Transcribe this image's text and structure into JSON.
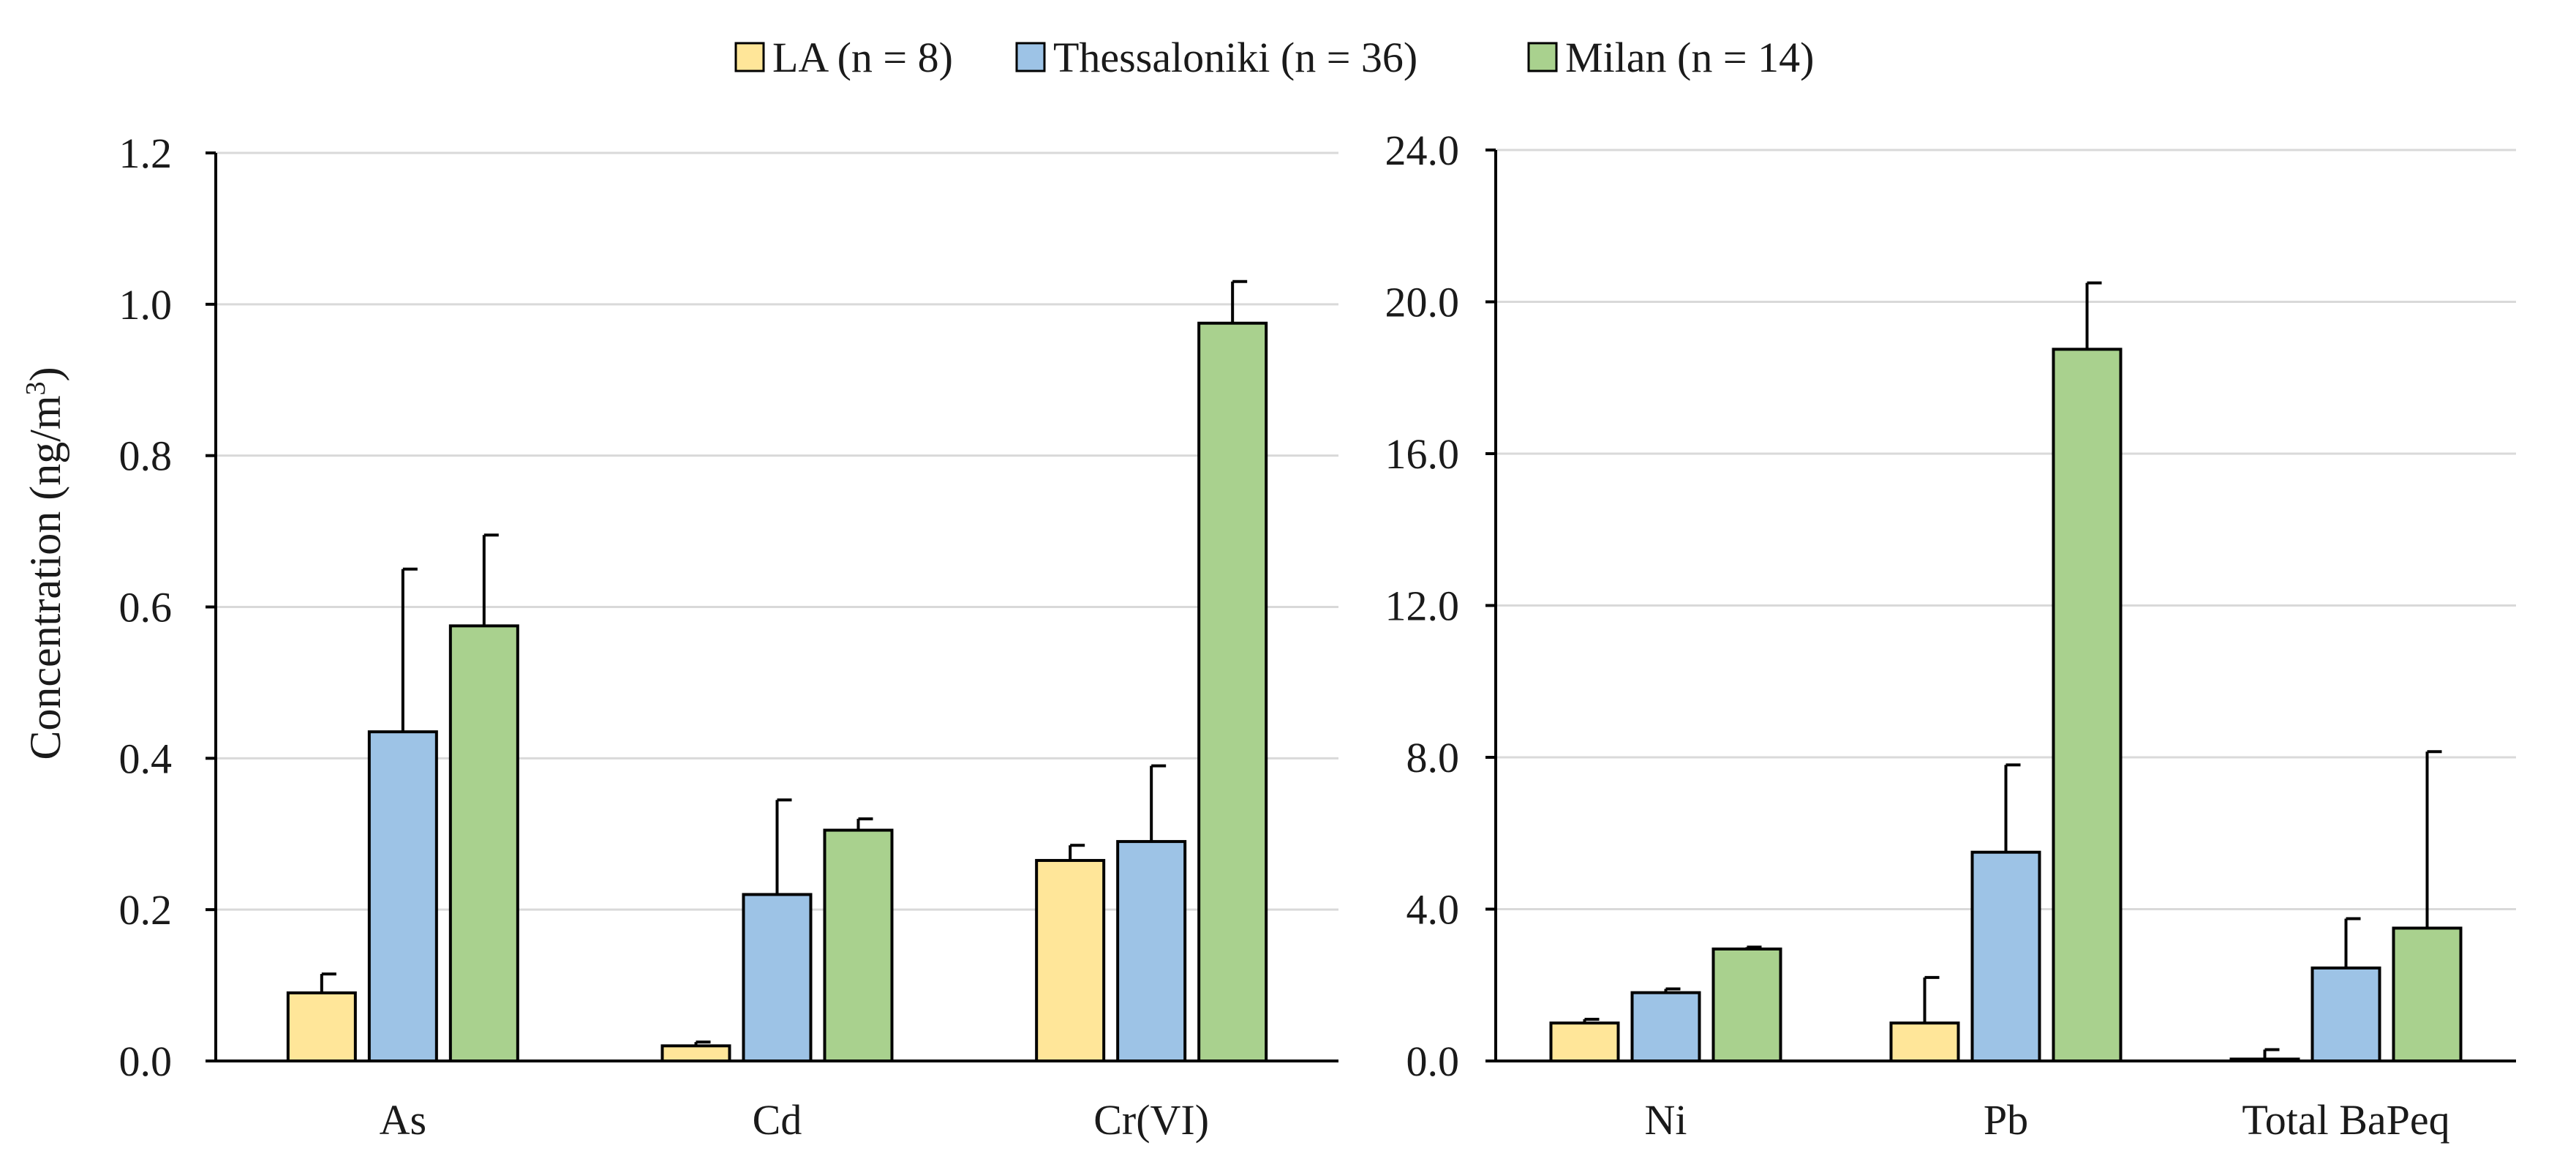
{
  "legend": [
    {
      "name": "LA (n = 8)",
      "color": "#ffe699"
    },
    {
      "name": "Thessaloniki (n = 36)",
      "color": "#9dc3e6"
    },
    {
      "name": "Milan (n = 14)",
      "color": "#a9d18e"
    }
  ],
  "ylabel": {
    "main": "Concentration (ng/m",
    "sup": "3",
    "close": ")"
  },
  "chart_data": [
    {
      "type": "bar",
      "title": "",
      "xlabel": "",
      "ylabel": "Concentration (ng/m3)",
      "ylim": [
        0,
        1.2
      ],
      "yticks": [
        "0.0",
        "0.2",
        "0.4",
        "0.6",
        "0.8",
        "1.0",
        "1.2"
      ],
      "grid": true,
      "categories": [
        "As",
        "Cd",
        "Cr(VI)"
      ],
      "series": [
        {
          "name": "LA (n = 8)",
          "values": [
            0.09,
            0.02,
            0.265
          ],
          "errors": [
            0.025,
            0.005,
            0.02
          ]
        },
        {
          "name": "Thessaloniki (n = 36)",
          "values": [
            0.435,
            0.22,
            0.29
          ],
          "errors": [
            0.215,
            0.125,
            0.1
          ]
        },
        {
          "name": "Milan (n = 14)",
          "values": [
            0.575,
            0.305,
            0.975
          ],
          "errors": [
            0.12,
            0.015,
            0.055
          ]
        }
      ]
    },
    {
      "type": "bar",
      "title": "",
      "xlabel": "",
      "ylabel": "",
      "ylim": [
        0,
        24
      ],
      "yticks": [
        "0.0",
        "4.0",
        "8.0",
        "12.0",
        "16.0",
        "20.0",
        "24.0"
      ],
      "grid": true,
      "categories": [
        "Ni",
        "Pb",
        "Total BaPeq"
      ],
      "series": [
        {
          "name": "LA (n = 8)",
          "values": [
            1.0,
            1.0,
            0.05
          ],
          "errors": [
            0.1,
            1.2,
            0.25
          ]
        },
        {
          "name": "Thessaloniki (n = 36)",
          "values": [
            1.8,
            5.5,
            2.45
          ],
          "errors": [
            0.1,
            2.3,
            1.3
          ]
        },
        {
          "name": "Milan (n = 14)",
          "values": [
            2.95,
            18.75,
            3.5
          ],
          "errors": [
            0.05,
            1.75,
            4.65
          ]
        }
      ]
    }
  ]
}
